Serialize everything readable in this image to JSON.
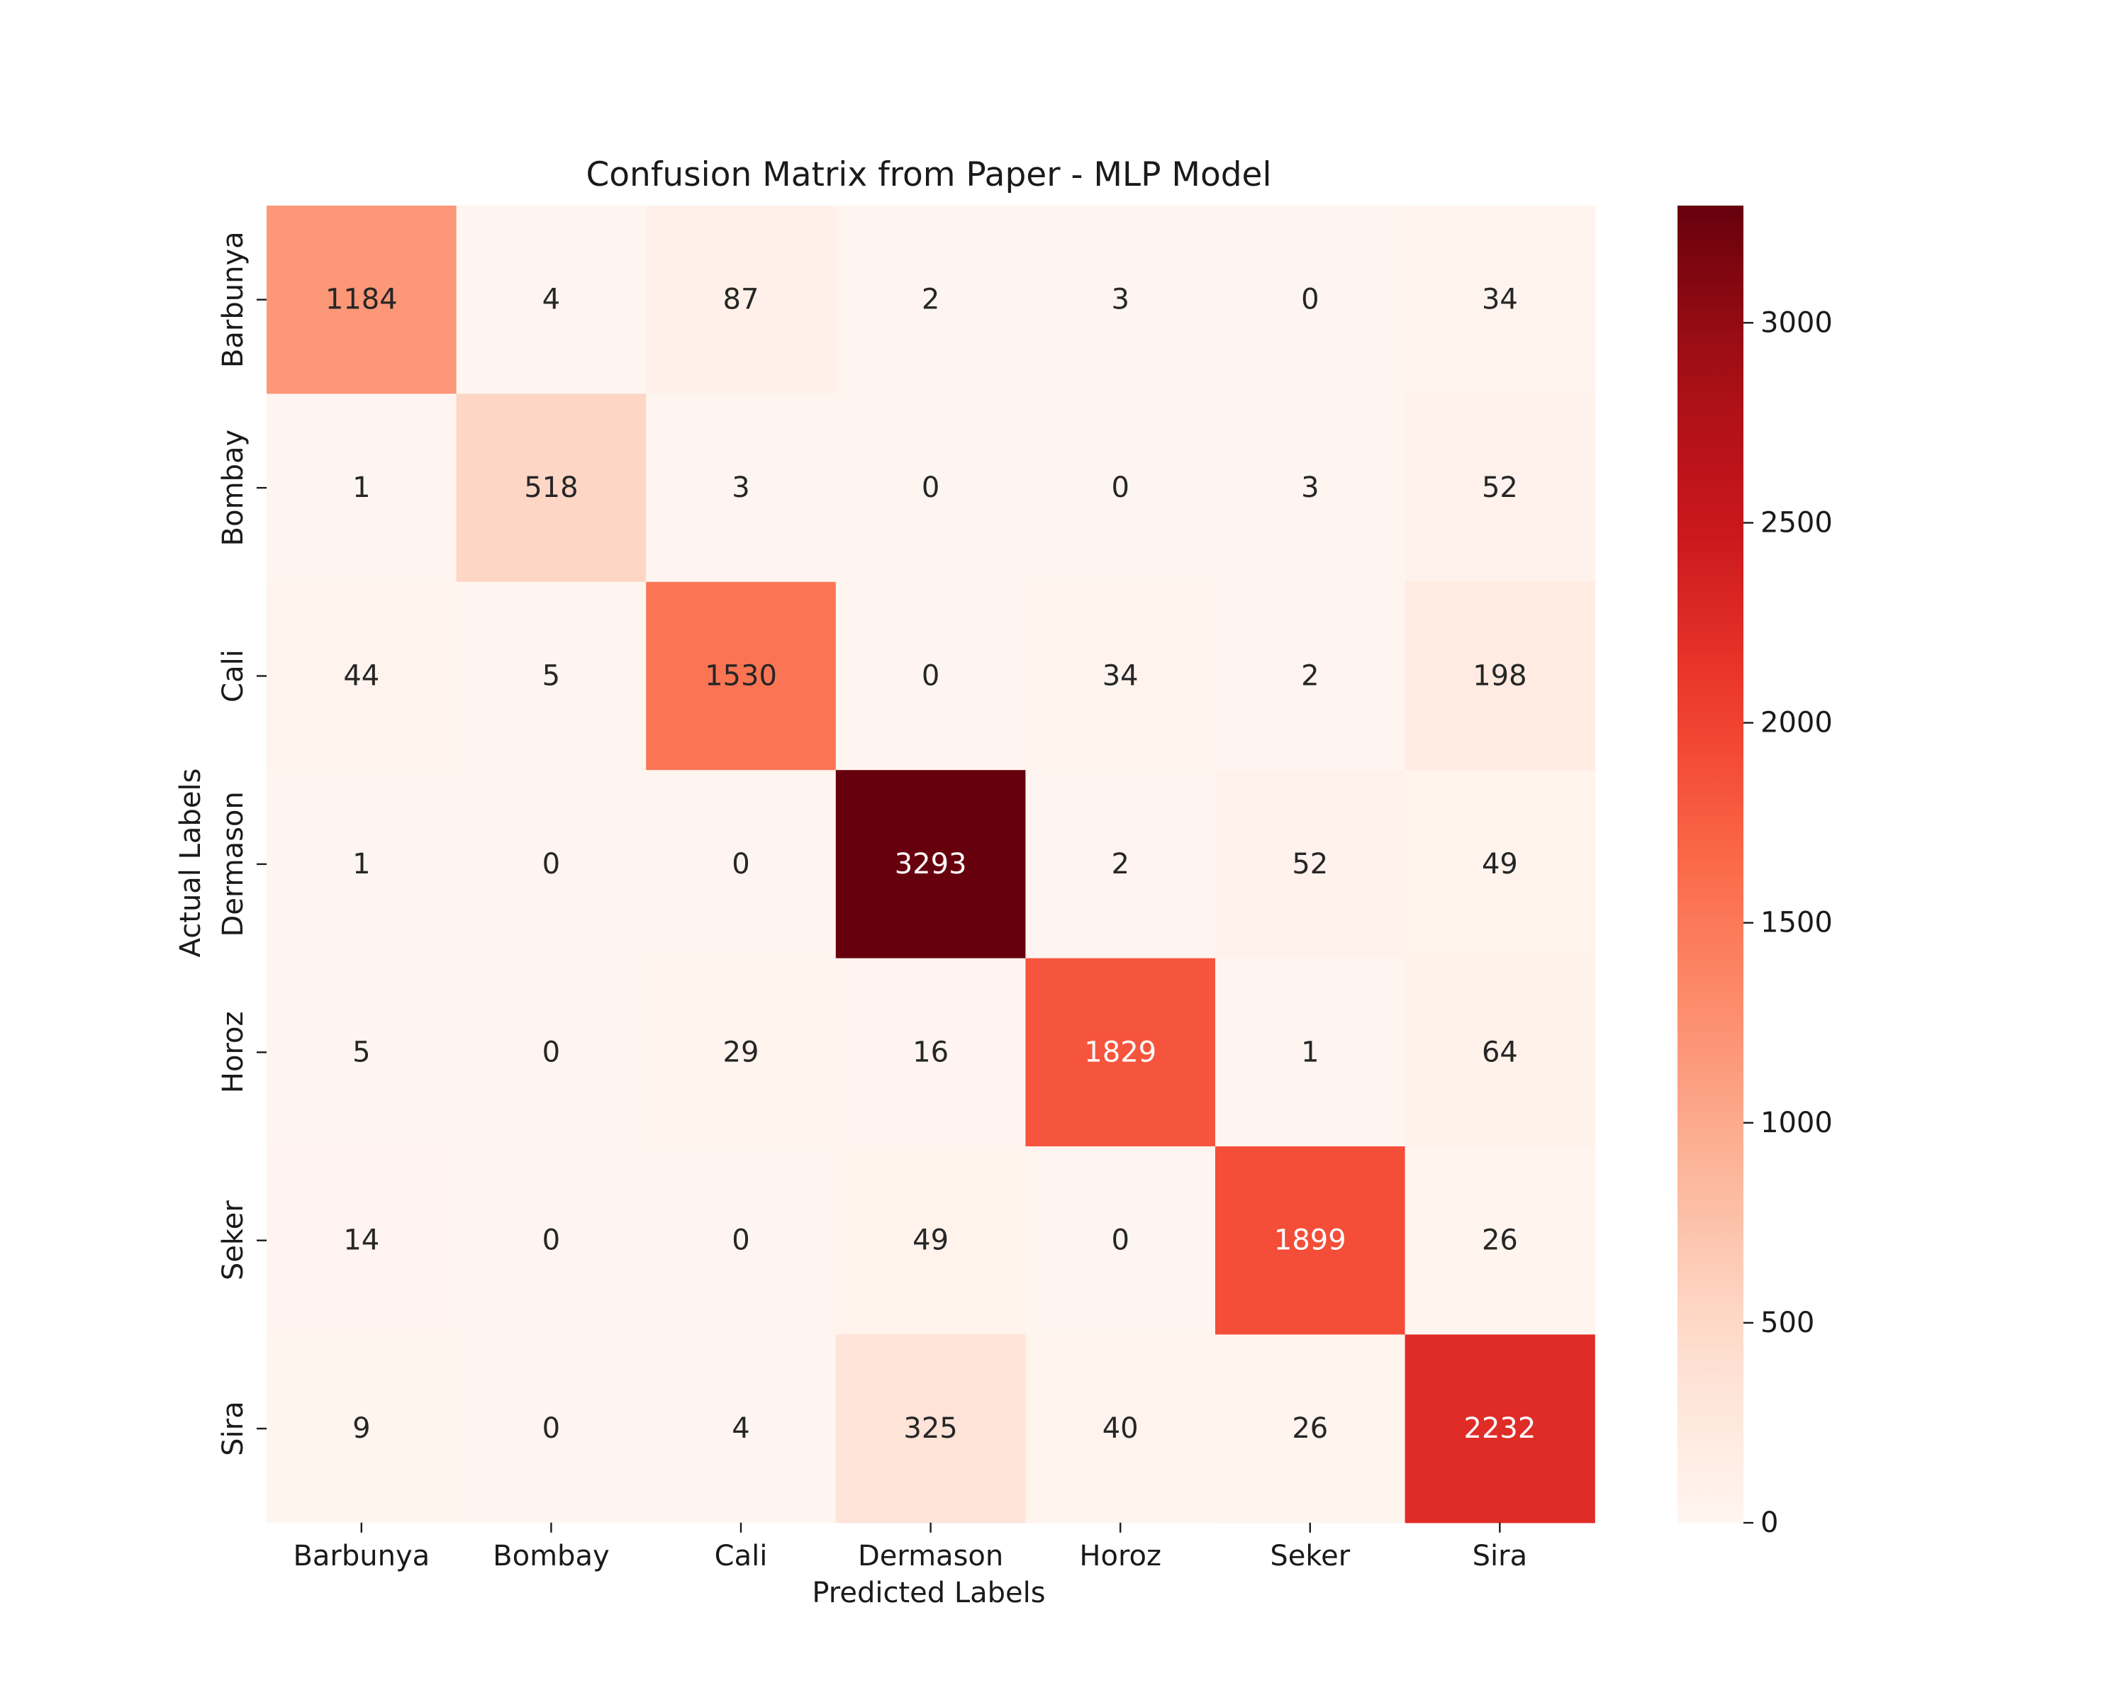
{
  "chart_data": {
    "type": "heatmap",
    "title": "Confusion Matrix from Paper - MLP Model",
    "xlabel": "Predicted Labels",
    "ylabel": "Actual Labels",
    "x_categories": [
      "Barbunya",
      "Bombay",
      "Cali",
      "Dermason",
      "Horoz",
      "Seker",
      "Sira"
    ],
    "y_categories": [
      "Barbunya",
      "Bombay",
      "Cali",
      "Dermason",
      "Horoz",
      "Seker",
      "Sira"
    ],
    "values": [
      [
        1184,
        4,
        87,
        2,
        3,
        0,
        34
      ],
      [
        1,
        518,
        3,
        0,
        0,
        3,
        52
      ],
      [
        44,
        5,
        1530,
        0,
        34,
        2,
        198
      ],
      [
        1,
        0,
        0,
        3293,
        2,
        52,
        49
      ],
      [
        5,
        0,
        29,
        16,
        1829,
        1,
        64
      ],
      [
        14,
        0,
        0,
        49,
        0,
        1899,
        26
      ],
      [
        9,
        0,
        4,
        325,
        40,
        26,
        2232
      ]
    ],
    "colormap": "Reds",
    "colorbar": {
      "range": [
        0,
        3293
      ],
      "ticks": [
        0,
        500,
        1000,
        1500,
        2000,
        2500,
        3000
      ],
      "placement": "right"
    },
    "annotations": "cell values shown",
    "grid": false
  }
}
